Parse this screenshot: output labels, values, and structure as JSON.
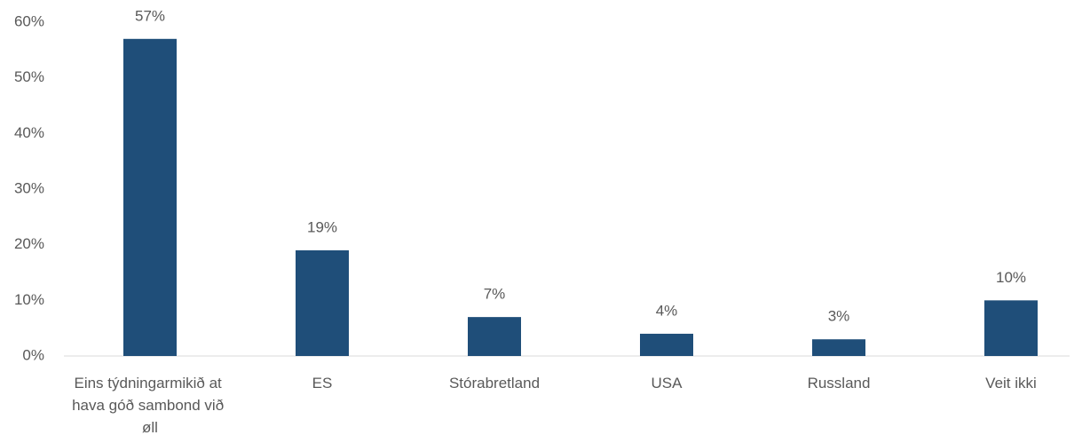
{
  "chart_data": {
    "type": "bar",
    "categories": [
      "Eins týdningarmikið at hava góð sambond við øll",
      "ES",
      "Stórabretland",
      "USA",
      "Russland",
      "Veit ikki"
    ],
    "values": [
      57,
      19,
      7,
      4,
      3,
      10
    ],
    "value_labels": [
      "57%",
      "19%",
      "7%",
      "4%",
      "3%",
      "10%"
    ],
    "color": "#1f4e79",
    "ylim": [
      0,
      60
    ],
    "yticks": [
      {
        "value": 0,
        "label": "0%"
      },
      {
        "value": 10,
        "label": "10%"
      },
      {
        "value": 20,
        "label": "20%"
      },
      {
        "value": 30,
        "label": "30%"
      },
      {
        "value": 40,
        "label": "40%"
      },
      {
        "value": 50,
        "label": "50%"
      },
      {
        "value": 60,
        "label": "60%"
      }
    ],
    "grid": false
  }
}
